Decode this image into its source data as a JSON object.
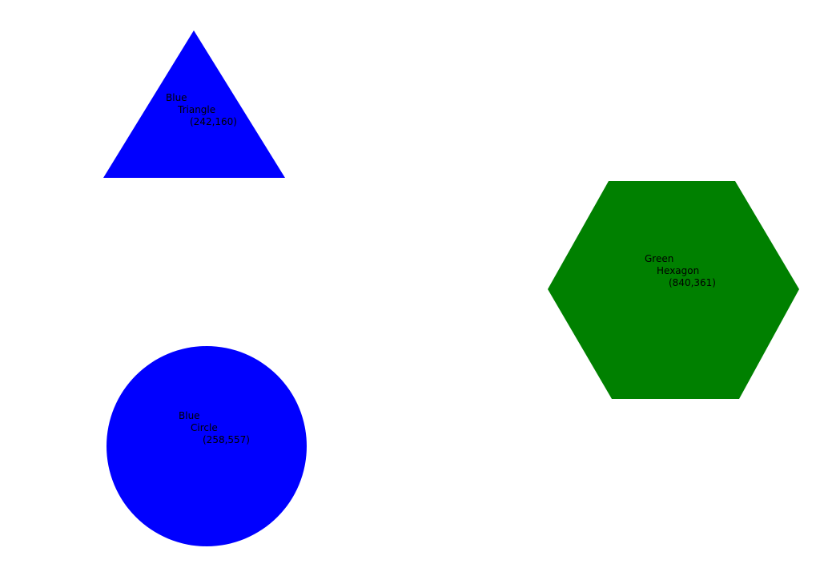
{
  "shapes": [
    {
      "id": "triangle",
      "kind": "triangle",
      "color": "#0000ff",
      "label_line1": "Blue",
      "label_line2": "Triangle",
      "label_line3": "(242,160)"
    },
    {
      "id": "hexagon",
      "kind": "hexagon",
      "color": "#008000",
      "label_line1": "Green",
      "label_line2": "Hexagon",
      "label_line3": "(840,361)"
    },
    {
      "id": "circle",
      "kind": "circle",
      "color": "#0000ff",
      "label_line1": "Blue",
      "label_line2": "Circle",
      "label_line3": "(258,557)"
    }
  ]
}
